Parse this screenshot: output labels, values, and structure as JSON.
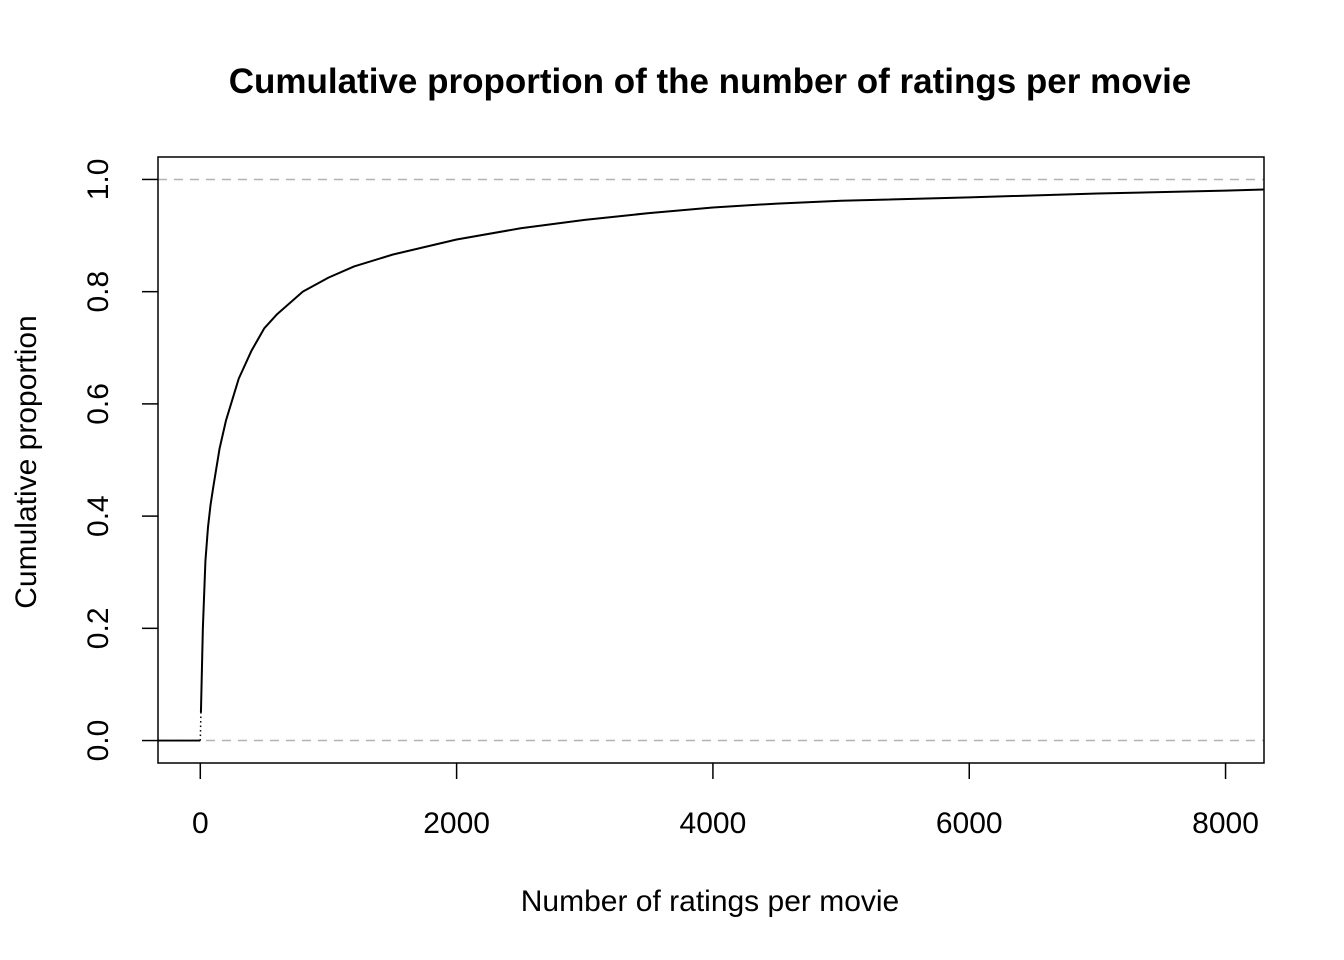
{
  "chart_data": {
    "type": "line",
    "subtype": "ecdf",
    "title": "Cumulative proportion of the number of ratings per movie",
    "xlabel": "Number of ratings per movie",
    "ylabel": "Cumulative proportion",
    "xlim": [
      -330,
      8300
    ],
    "ylim": [
      -0.04,
      1.04
    ],
    "x_ticks": [
      0,
      2000,
      4000,
      6000,
      8000
    ],
    "x_tick_labels": [
      "0",
      "2000",
      "4000",
      "6000",
      "8000"
    ],
    "y_ticks": [
      0.0,
      0.2,
      0.4,
      0.6,
      0.8,
      1.0
    ],
    "y_tick_labels": [
      "0.0",
      "0.2",
      "0.4",
      "0.6",
      "0.8",
      "1.0"
    ],
    "reference_lines": [
      {
        "y": 0.0,
        "style": "dashed",
        "color": "#b3b3b3"
      },
      {
        "y": 1.0,
        "style": "dashed",
        "color": "#b3b3b3"
      }
    ],
    "grid": false,
    "legend": "none",
    "series": [
      {
        "color": "#000000",
        "x": [
          -330,
          0,
          5,
          20,
          40,
          60,
          80,
          100,
          150,
          200,
          300,
          400,
          500,
          600,
          800,
          1000,
          1200,
          1500,
          2000,
          2500,
          3000,
          3500,
          4000,
          4500,
          5000,
          6000,
          7000,
          8000,
          8300
        ],
        "y": [
          0.0,
          0.0,
          0.05,
          0.2,
          0.32,
          0.38,
          0.42,
          0.45,
          0.52,
          0.57,
          0.645,
          0.695,
          0.735,
          0.76,
          0.8,
          0.825,
          0.845,
          0.866,
          0.893,
          0.913,
          0.928,
          0.94,
          0.95,
          0.957,
          0.962,
          0.968,
          0.975,
          0.98,
          0.982
        ]
      }
    ]
  }
}
